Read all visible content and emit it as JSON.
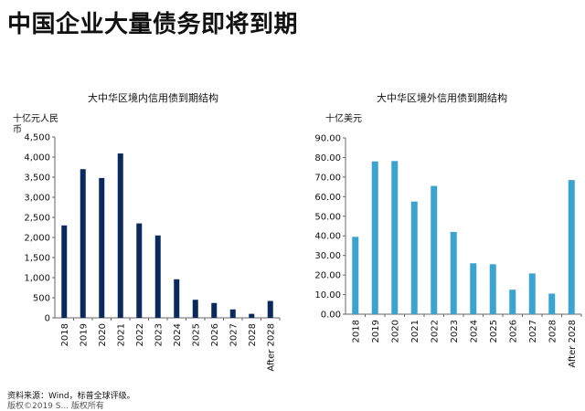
{
  "page": {
    "title": "中国企业大量债务即将到期"
  },
  "footer": {
    "source": "资料来源：Wind，标普全球评级。",
    "copyright_fragment": "版权©2019 S... 版权所有"
  },
  "colors": {
    "domestic_bar": "#0a2a5e",
    "offshore_bar": "#3aa3cf",
    "axis": "#666666"
  },
  "chart_data": [
    {
      "type": "bar",
      "title": "大中华区境内信用债到期结构",
      "ylabel": "十亿元人民币",
      "categories": [
        "2018",
        "2019",
        "2020",
        "2021",
        "2022",
        "2023",
        "2024",
        "2025",
        "2026",
        "2027",
        "2028",
        "After 2028"
      ],
      "values": [
        2300,
        3700,
        3480,
        4090,
        2350,
        2050,
        960,
        450,
        370,
        210,
        100,
        420
      ],
      "ylim": [
        0,
        4500
      ],
      "yticks": [
        "0",
        "500",
        "1,000",
        "1,500",
        "2,000",
        "2,500",
        "3,000",
        "3,500",
        "4,000",
        "4,500"
      ],
      "grid": false,
      "legend": "none"
    },
    {
      "type": "bar",
      "title": "大中华区境外信用债到期结构",
      "ylabel": "十亿美元",
      "categories": [
        "2018",
        "2019",
        "2020",
        "2021",
        "2022",
        "2023",
        "2024",
        "2025",
        "2026",
        "2027",
        "2028",
        "After 2028"
      ],
      "values": [
        39.5,
        78,
        78.2,
        57.5,
        65.5,
        42,
        26,
        25.5,
        12.5,
        20.8,
        10.5,
        68.5
      ],
      "ylim": [
        0,
        90
      ],
      "yticks": [
        "0.00",
        "10.00",
        "20.00",
        "30.00",
        "40.00",
        "50.00",
        "60.00",
        "70.00",
        "80.00",
        "90.00"
      ],
      "grid": false,
      "legend": "none"
    }
  ]
}
